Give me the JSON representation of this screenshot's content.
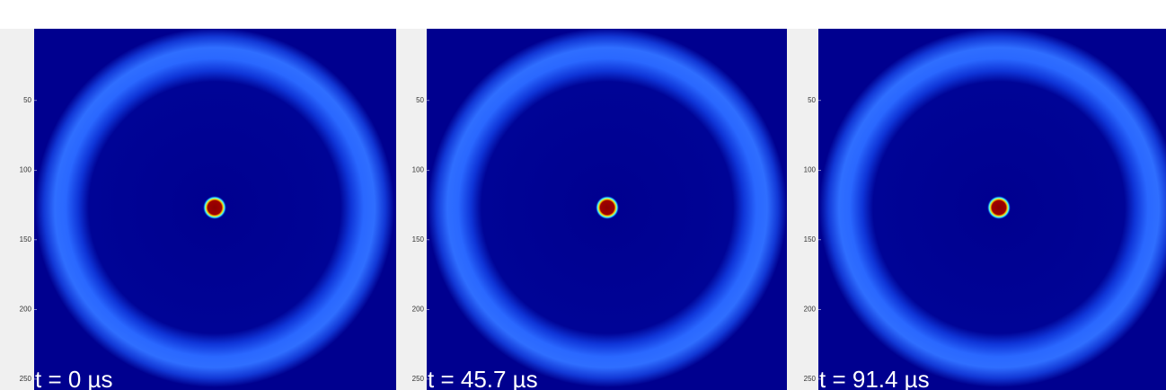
{
  "chart_data": [
    {
      "type": "image",
      "label": "t = 0 µs",
      "ylim": [
        -1.5,
        256.5
      ],
      "yticks": [
        50,
        100,
        150,
        200,
        250
      ]
    },
    {
      "type": "image",
      "label": "t = 45.7 µs",
      "ylim": [
        -1.5,
        256.5
      ],
      "yticks": [
        50,
        100,
        150,
        200,
        250
      ]
    },
    {
      "type": "image",
      "label": "t = 91.4 µs",
      "ylim": [
        -1.5,
        256.5
      ],
      "yticks": [
        50,
        100,
        150,
        200,
        250
      ]
    }
  ]
}
